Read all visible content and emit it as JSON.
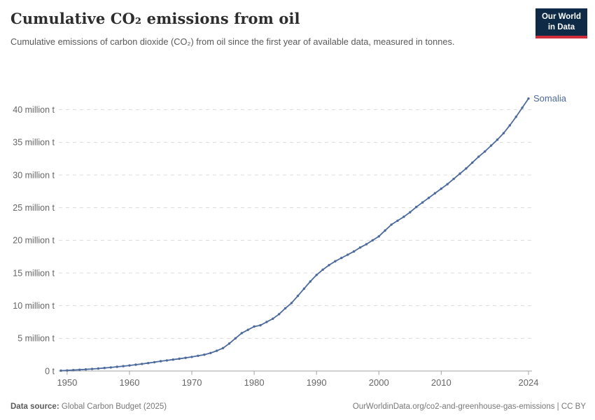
{
  "header": {
    "title": "Cumulative CO₂ emissions from oil",
    "subtitle": "Cumulative emissions of carbon dioxide (CO₂) from oil since the first year of available data, measured in tonnes.",
    "logo": {
      "line1": "Our World",
      "line2": "in Data",
      "bg_color": "#0e2a47",
      "accent_color": "#d22d3c"
    }
  },
  "chart_data": {
    "type": "line",
    "title": "Cumulative CO₂ emissions from oil",
    "subtitle": "Cumulative emissions of carbon dioxide (CO₂) from oil since the first year of available data, measured in tonnes.",
    "entity": "Somalia",
    "unit": "million tonnes",
    "grid": true,
    "legend_position": "end-of-line-label",
    "xlim": [
      1949,
      2024
    ],
    "ylim": [
      0,
      45
    ],
    "x_ticks": [
      1950,
      1960,
      1970,
      1980,
      1990,
      2000,
      2010,
      2024
    ],
    "y_ticks": [
      {
        "value": 0,
        "label": "0 t"
      },
      {
        "value": 5,
        "label": "5 million t"
      },
      {
        "value": 10,
        "label": "10 million t"
      },
      {
        "value": 15,
        "label": "15 million t"
      },
      {
        "value": 20,
        "label": "20 million t"
      },
      {
        "value": 25,
        "label": "25 million t"
      },
      {
        "value": 30,
        "label": "30 million t"
      },
      {
        "value": 35,
        "label": "35 million t"
      },
      {
        "value": 40,
        "label": "40 million t"
      }
    ],
    "x": [
      1949,
      1950,
      1951,
      1952,
      1953,
      1954,
      1955,
      1956,
      1957,
      1958,
      1959,
      1960,
      1961,
      1962,
      1963,
      1964,
      1965,
      1966,
      1967,
      1968,
      1969,
      1970,
      1971,
      1972,
      1973,
      1974,
      1975,
      1976,
      1977,
      1978,
      1979,
      1980,
      1981,
      1982,
      1983,
      1984,
      1985,
      1986,
      1987,
      1988,
      1989,
      1990,
      1991,
      1992,
      1993,
      1994,
      1995,
      1996,
      1997,
      1998,
      1999,
      2000,
      2001,
      2002,
      2003,
      2004,
      2005,
      2006,
      2007,
      2008,
      2009,
      2010,
      2011,
      2012,
      2013,
      2014,
      2015,
      2016,
      2017,
      2018,
      2019,
      2020,
      2021,
      2022,
      2023,
      2024
    ],
    "series": [
      {
        "name": "Somalia",
        "color": "#4C6A9C",
        "values": [
          0.05,
          0.09,
          0.14,
          0.19,
          0.25,
          0.31,
          0.38,
          0.46,
          0.55,
          0.64,
          0.74,
          0.85,
          0.96,
          1.08,
          1.21,
          1.35,
          1.5,
          1.62,
          1.75,
          1.88,
          2.01,
          2.15,
          2.32,
          2.5,
          2.75,
          3.1,
          3.5,
          4.2,
          5.0,
          5.8,
          6.3,
          6.8,
          7.0,
          7.5,
          8.0,
          8.7,
          9.6,
          10.4,
          11.5,
          12.6,
          13.7,
          14.7,
          15.5,
          16.2,
          16.8,
          17.3,
          17.8,
          18.3,
          18.9,
          19.4,
          20.0,
          20.6,
          21.5,
          22.4,
          23.0,
          23.6,
          24.3,
          25.1,
          25.8,
          26.5,
          27.2,
          27.9,
          28.6,
          29.4,
          30.2,
          31.0,
          31.9,
          32.8,
          33.6,
          34.5,
          35.4,
          36.4,
          37.6,
          38.9,
          40.3,
          41.7
        ]
      }
    ],
    "colors": {
      "line": "#4C6A9C",
      "gridline": "#dcdcdc",
      "axis_line": "#a3a3a3",
      "tick_label": "#666666"
    }
  },
  "footer": {
    "datasource_label": "Data source:",
    "datasource": "Global Carbon Budget (2025)",
    "link": "OurWorldinData.org/co2-and-greenhouse-gas-emissions | CC BY"
  }
}
